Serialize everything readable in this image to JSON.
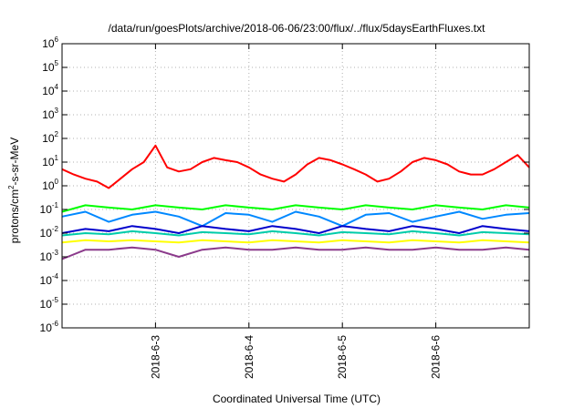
{
  "chart_data": {
    "type": "line",
    "title": "/data/run/goesPlots/archive/2018-06-06/23:00/flux/../flux/5daysEarthFluxes.txt",
    "xlabel": "Coordinated Universal Time (UTC)",
    "ylabel": {
      "prefix": "protons/cm",
      "superscript": "2",
      "suffix": "-s-sr-MeV"
    },
    "yscale": "log",
    "ylim": [
      1e-06,
      1000000.0
    ],
    "xlim": [
      "2018-06-02T00:00",
      "2018-06-07T00:00"
    ],
    "y_ticks": [
      {
        "value": 1000000.0,
        "base": "10",
        "exp": "6"
      },
      {
        "value": 100000.0,
        "base": "10",
        "exp": "5"
      },
      {
        "value": 10000.0,
        "base": "10",
        "exp": "4"
      },
      {
        "value": 1000.0,
        "base": "10",
        "exp": "3"
      },
      {
        "value": 100.0,
        "base": "10",
        "exp": "2"
      },
      {
        "value": 10.0,
        "base": "10",
        "exp": "1"
      },
      {
        "value": 1.0,
        "base": "10",
        "exp": "0"
      },
      {
        "value": 0.1,
        "base": "10",
        "exp": "-1"
      },
      {
        "value": 0.01,
        "base": "10",
        "exp": "-2"
      },
      {
        "value": 0.001,
        "base": "10",
        "exp": "-3"
      },
      {
        "value": 0.0001,
        "base": "10",
        "exp": "-4"
      },
      {
        "value": 1e-05,
        "base": "10",
        "exp": "-5"
      },
      {
        "value": 1e-06,
        "base": "10",
        "exp": "-6"
      }
    ],
    "x_ticks": [
      {
        "x": "2018-06-03T00:00",
        "label": "2018-6-3"
      },
      {
        "x": "2018-06-04T00:00",
        "label": "2018-6-4"
      },
      {
        "x": "2018-06-05T00:00",
        "label": "2018-6-5"
      },
      {
        "x": "2018-06-06T00:00",
        "label": "2018-6-6"
      }
    ],
    "grid": true,
    "series": [
      {
        "color": "#ff0000",
        "x": [
          "2018-06-02T00:00",
          "2018-06-02T03:00",
          "2018-06-02T06:00",
          "2018-06-02T09:00",
          "2018-06-02T12:00",
          "2018-06-02T15:00",
          "2018-06-02T18:00",
          "2018-06-02T21:00",
          "2018-06-03T00:00",
          "2018-06-03T03:00",
          "2018-06-03T06:00",
          "2018-06-03T09:00",
          "2018-06-03T12:00",
          "2018-06-03T15:00",
          "2018-06-03T18:00",
          "2018-06-03T21:00",
          "2018-06-04T00:00",
          "2018-06-04T03:00",
          "2018-06-04T06:00",
          "2018-06-04T09:00",
          "2018-06-04T12:00",
          "2018-06-04T15:00",
          "2018-06-04T18:00",
          "2018-06-04T21:00",
          "2018-06-05T00:00",
          "2018-06-05T03:00",
          "2018-06-05T06:00",
          "2018-06-05T09:00",
          "2018-06-05T12:00",
          "2018-06-05T15:00",
          "2018-06-05T18:00",
          "2018-06-05T21:00",
          "2018-06-06T00:00",
          "2018-06-06T03:00",
          "2018-06-06T06:00",
          "2018-06-06T09:00",
          "2018-06-06T12:00",
          "2018-06-06T15:00",
          "2018-06-06T18:00",
          "2018-06-06T21:00",
          "2018-06-07T00:00"
        ],
        "values": [
          5,
          3,
          2,
          1.5,
          0.8,
          2,
          5,
          10,
          50,
          6,
          4,
          5,
          10,
          15,
          12,
          10,
          6,
          3,
          2,
          1.5,
          3,
          8,
          15,
          12,
          8,
          5,
          3,
          1.5,
          2,
          4,
          10,
          15,
          12,
          8,
          4,
          3,
          3,
          5,
          10,
          20,
          6
        ]
      },
      {
        "color": "#00ff00",
        "x": [
          "2018-06-02T00:00",
          "2018-06-02T06:00",
          "2018-06-02T12:00",
          "2018-06-02T18:00",
          "2018-06-03T00:00",
          "2018-06-03T06:00",
          "2018-06-03T12:00",
          "2018-06-03T18:00",
          "2018-06-04T00:00",
          "2018-06-04T06:00",
          "2018-06-04T12:00",
          "2018-06-04T18:00",
          "2018-06-05T00:00",
          "2018-06-05T06:00",
          "2018-06-05T12:00",
          "2018-06-05T18:00",
          "2018-06-06T00:00",
          "2018-06-06T06:00",
          "2018-06-06T12:00",
          "2018-06-06T18:00",
          "2018-06-07T00:00"
        ],
        "values": [
          0.08,
          0.15,
          0.12,
          0.1,
          0.15,
          0.12,
          0.1,
          0.15,
          0.12,
          0.1,
          0.15,
          0.12,
          0.1,
          0.15,
          0.12,
          0.1,
          0.15,
          0.12,
          0.1,
          0.15,
          0.12
        ]
      },
      {
        "color": "#0088ff",
        "x": [
          "2018-06-02T00:00",
          "2018-06-02T06:00",
          "2018-06-02T12:00",
          "2018-06-02T18:00",
          "2018-06-03T00:00",
          "2018-06-03T06:00",
          "2018-06-03T12:00",
          "2018-06-03T18:00",
          "2018-06-04T00:00",
          "2018-06-04T06:00",
          "2018-06-04T12:00",
          "2018-06-04T18:00",
          "2018-06-05T00:00",
          "2018-06-05T06:00",
          "2018-06-05T12:00",
          "2018-06-05T18:00",
          "2018-06-06T00:00",
          "2018-06-06T06:00",
          "2018-06-06T12:00",
          "2018-06-06T18:00",
          "2018-06-07T00:00"
        ],
        "values": [
          0.05,
          0.08,
          0.03,
          0.06,
          0.08,
          0.05,
          0.02,
          0.07,
          0.06,
          0.03,
          0.08,
          0.05,
          0.02,
          0.06,
          0.07,
          0.03,
          0.05,
          0.08,
          0.04,
          0.06,
          0.07
        ]
      },
      {
        "color": "#0000cc",
        "x": [
          "2018-06-02T00:00",
          "2018-06-02T06:00",
          "2018-06-02T12:00",
          "2018-06-02T18:00",
          "2018-06-03T00:00",
          "2018-06-03T06:00",
          "2018-06-03T12:00",
          "2018-06-03T18:00",
          "2018-06-04T00:00",
          "2018-06-04T06:00",
          "2018-06-04T12:00",
          "2018-06-04T18:00",
          "2018-06-05T00:00",
          "2018-06-05T06:00",
          "2018-06-05T12:00",
          "2018-06-05T18:00",
          "2018-06-06T00:00",
          "2018-06-06T06:00",
          "2018-06-06T12:00",
          "2018-06-06T18:00",
          "2018-06-07T00:00"
        ],
        "values": [
          0.01,
          0.015,
          0.012,
          0.02,
          0.015,
          0.01,
          0.02,
          0.015,
          0.012,
          0.02,
          0.015,
          0.01,
          0.02,
          0.015,
          0.012,
          0.02,
          0.015,
          0.01,
          0.02,
          0.015,
          0.012
        ]
      },
      {
        "color": "#00ccaa",
        "x": [
          "2018-06-02T00:00",
          "2018-06-02T06:00",
          "2018-06-02T12:00",
          "2018-06-02T18:00",
          "2018-06-03T00:00",
          "2018-06-03T06:00",
          "2018-06-03T12:00",
          "2018-06-03T18:00",
          "2018-06-04T00:00",
          "2018-06-04T06:00",
          "2018-06-04T12:00",
          "2018-06-04T18:00",
          "2018-06-05T00:00",
          "2018-06-05T06:00",
          "2018-06-05T12:00",
          "2018-06-05T18:00",
          "2018-06-06T00:00",
          "2018-06-06T06:00",
          "2018-06-06T12:00",
          "2018-06-06T18:00",
          "2018-06-07T00:00"
        ],
        "values": [
          0.008,
          0.01,
          0.009,
          0.012,
          0.01,
          0.008,
          0.011,
          0.01,
          0.009,
          0.012,
          0.01,
          0.008,
          0.011,
          0.01,
          0.009,
          0.012,
          0.01,
          0.008,
          0.011,
          0.01,
          0.009
        ]
      },
      {
        "color": "#ffff00",
        "x": [
          "2018-06-02T00:00",
          "2018-06-02T06:00",
          "2018-06-02T12:00",
          "2018-06-02T18:00",
          "2018-06-03T00:00",
          "2018-06-03T06:00",
          "2018-06-03T12:00",
          "2018-06-03T18:00",
          "2018-06-04T00:00",
          "2018-06-04T06:00",
          "2018-06-04T12:00",
          "2018-06-04T18:00",
          "2018-06-05T00:00",
          "2018-06-05T06:00",
          "2018-06-05T12:00",
          "2018-06-05T18:00",
          "2018-06-06T00:00",
          "2018-06-06T06:00",
          "2018-06-06T12:00",
          "2018-06-06T18:00",
          "2018-06-07T00:00"
        ],
        "values": [
          0.004,
          0.005,
          0.0045,
          0.005,
          0.0045,
          0.004,
          0.005,
          0.0045,
          0.004,
          0.005,
          0.0045,
          0.004,
          0.005,
          0.0045,
          0.004,
          0.005,
          0.0045,
          0.004,
          0.005,
          0.0045,
          0.004
        ]
      },
      {
        "color": "#8b3a8b",
        "x": [
          "2018-06-02T00:00",
          "2018-06-02T06:00",
          "2018-06-02T12:00",
          "2018-06-02T18:00",
          "2018-06-03T00:00",
          "2018-06-03T06:00",
          "2018-06-03T12:00",
          "2018-06-03T18:00",
          "2018-06-04T00:00",
          "2018-06-04T06:00",
          "2018-06-04T12:00",
          "2018-06-04T18:00",
          "2018-06-05T00:00",
          "2018-06-05T06:00",
          "2018-06-05T12:00",
          "2018-06-05T18:00",
          "2018-06-06T00:00",
          "2018-06-06T06:00",
          "2018-06-06T12:00",
          "2018-06-06T18:00",
          "2018-06-07T00:00"
        ],
        "values": [
          0.0008,
          0.002,
          0.002,
          0.0025,
          0.002,
          0.001,
          0.002,
          0.0025,
          0.002,
          0.002,
          0.0025,
          0.002,
          0.002,
          0.0025,
          0.002,
          0.002,
          0.0025,
          0.002,
          0.002,
          0.0025,
          0.002
        ]
      }
    ]
  }
}
